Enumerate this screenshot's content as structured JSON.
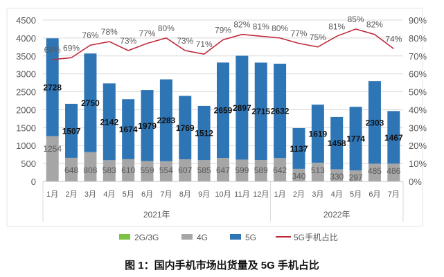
{
  "chart_data": {
    "type": "bar",
    "title": "",
    "categories": [
      "1月",
      "2月",
      "3月",
      "4月",
      "5月",
      "6月",
      "7月",
      "8月",
      "9月",
      "10月",
      "11月",
      "12月",
      "1月",
      "2月",
      "3月",
      "4月",
      "5月",
      "6月",
      "7月"
    ],
    "year_groups": [
      {
        "label": "2021年",
        "count": 12
      },
      {
        "label": "2022年",
        "count": 7
      }
    ],
    "series": [
      {
        "name": "2G/3G",
        "type": "stacked-bar",
        "color": "#7dc242",
        "values": [
          10,
          10,
          10,
          10,
          10,
          10,
          10,
          10,
          10,
          10,
          10,
          10,
          10,
          10,
          10,
          10,
          10,
          10,
          10
        ]
      },
      {
        "name": "4G",
        "type": "stacked-bar",
        "color": "#a6a6a6",
        "values": [
          1254,
          648,
          808,
          583,
          610,
          559,
          554,
          607,
          585,
          647,
          599,
          589,
          642,
          340,
          513,
          330,
          297,
          485,
          486
        ]
      },
      {
        "name": "5G",
        "type": "stacked-bar",
        "color": "#2e75b6",
        "values": [
          2728,
          1507,
          2750,
          2142,
          1674,
          1979,
          2283,
          1769,
          1512,
          2659,
          2897,
          2715,
          2632,
          1137,
          1619,
          1458,
          1774,
          2303,
          1467
        ]
      },
      {
        "name": "5G手机占比",
        "type": "line",
        "axis": "right",
        "color": "#c0283a",
        "values": [
          68,
          69,
          76,
          78,
          73,
          77,
          80,
          73,
          71,
          79,
          82,
          81,
          80,
          77,
          75,
          81,
          85,
          82,
          74
        ]
      }
    ],
    "ylim": [
      0,
      4500
    ],
    "yticks": [
      0,
      500,
      1000,
      1500,
      2000,
      2500,
      3000,
      3500,
      4000,
      4500
    ],
    "y2lim": [
      0,
      90
    ],
    "y2ticks": [
      "0%",
      "10%",
      "20%",
      "30%",
      "40%",
      "50%",
      "60%",
      "70%",
      "80%",
      "90%"
    ],
    "grid": true,
    "legend": "bottom"
  },
  "caption": "图 1：国内手机市场出货量及 5G 手机占比"
}
